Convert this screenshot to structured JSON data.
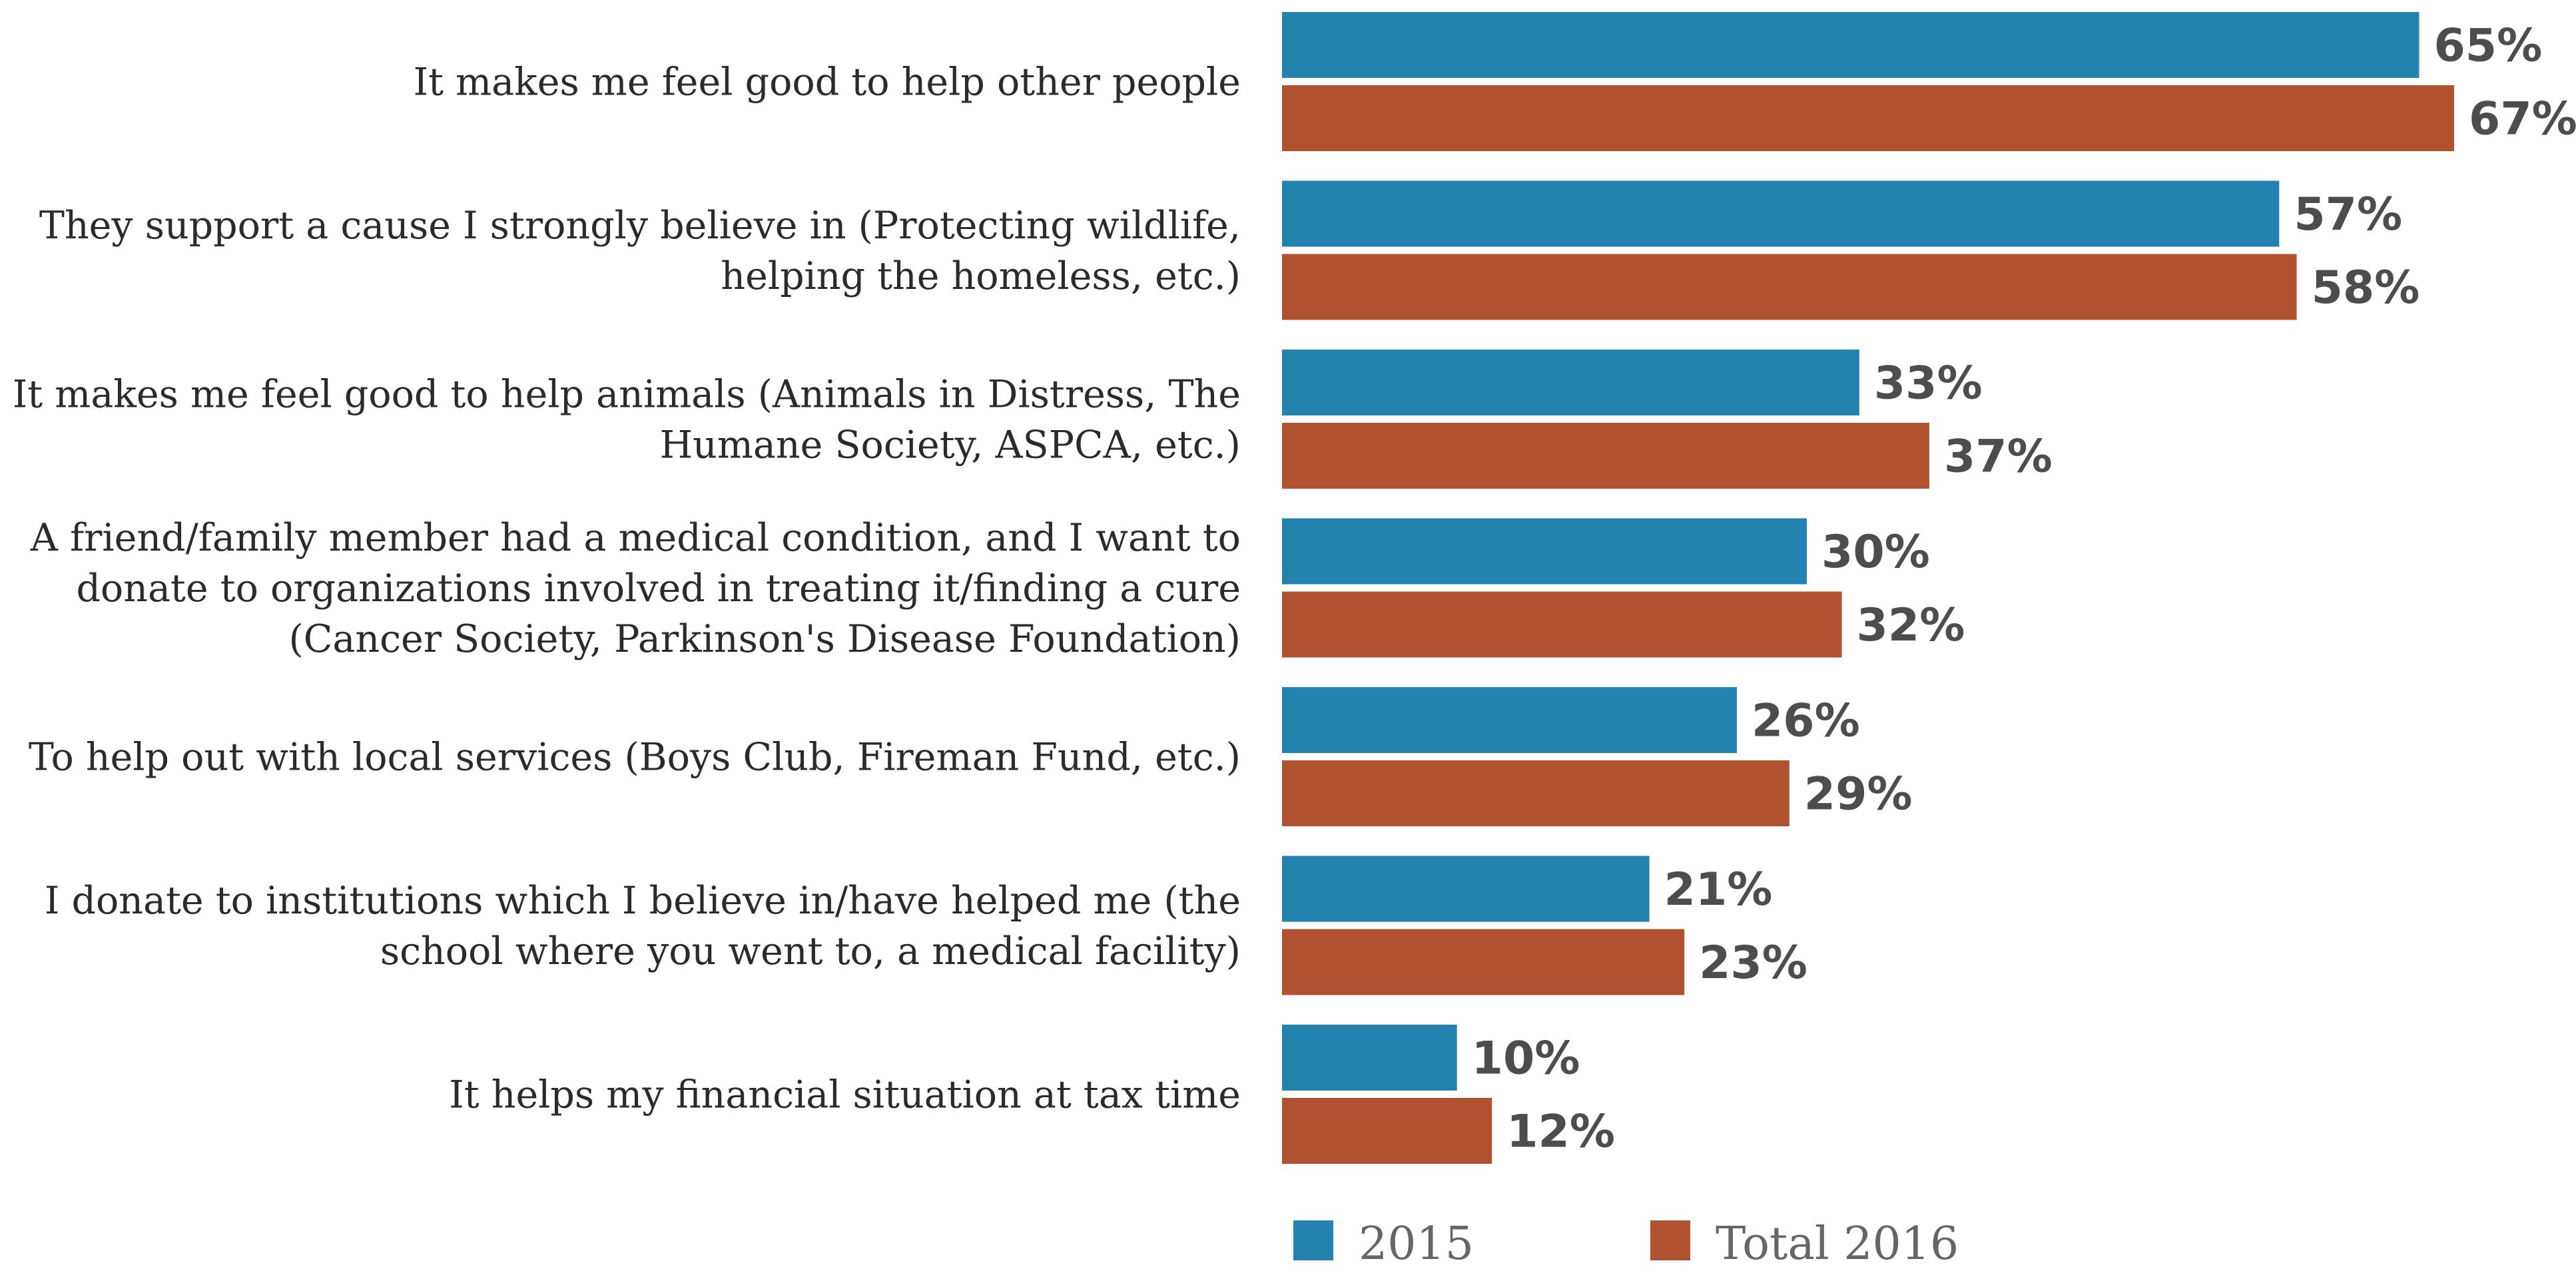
{
  "chart_data": {
    "type": "bar",
    "orientation": "horizontal",
    "categories": [
      [
        "It makes me feel good to help other people"
      ],
      [
        "They support a cause I strongly believe in (Protecting wildlife,",
        "helping the homeless, etc.)"
      ],
      [
        "It makes me feel good to help animals (Animals in Distress, The",
        "Humane Society, ASPCA, etc.)"
      ],
      [
        "A friend/family member had a medical condition, and I want to",
        "donate to organizations involved in treating it/finding a cure",
        "(Cancer Society, Parkinson's Disease Foundation)"
      ],
      [
        "To help out with local services (Boys Club, Fireman Fund, etc.)"
      ],
      [
        "I donate to institutions which I believe in/have helped me (the",
        "school where you went to, a medical facility)"
      ],
      [
        "It helps my financial situation at tax time"
      ]
    ],
    "series": [
      {
        "name": "2015",
        "color": "#2383ae",
        "values": [
          65,
          57,
          33,
          30,
          26,
          21,
          10
        ]
      },
      {
        "name": "Total 2016",
        "color": "#b05130",
        "values": [
          67,
          58,
          37,
          32,
          29,
          23,
          12
        ]
      }
    ],
    "value_suffix": "%",
    "xlim": [
      0,
      67
    ],
    "grid": false,
    "legend": "bottom-left",
    "title": "",
    "xlabel": "",
    "ylabel": ""
  }
}
